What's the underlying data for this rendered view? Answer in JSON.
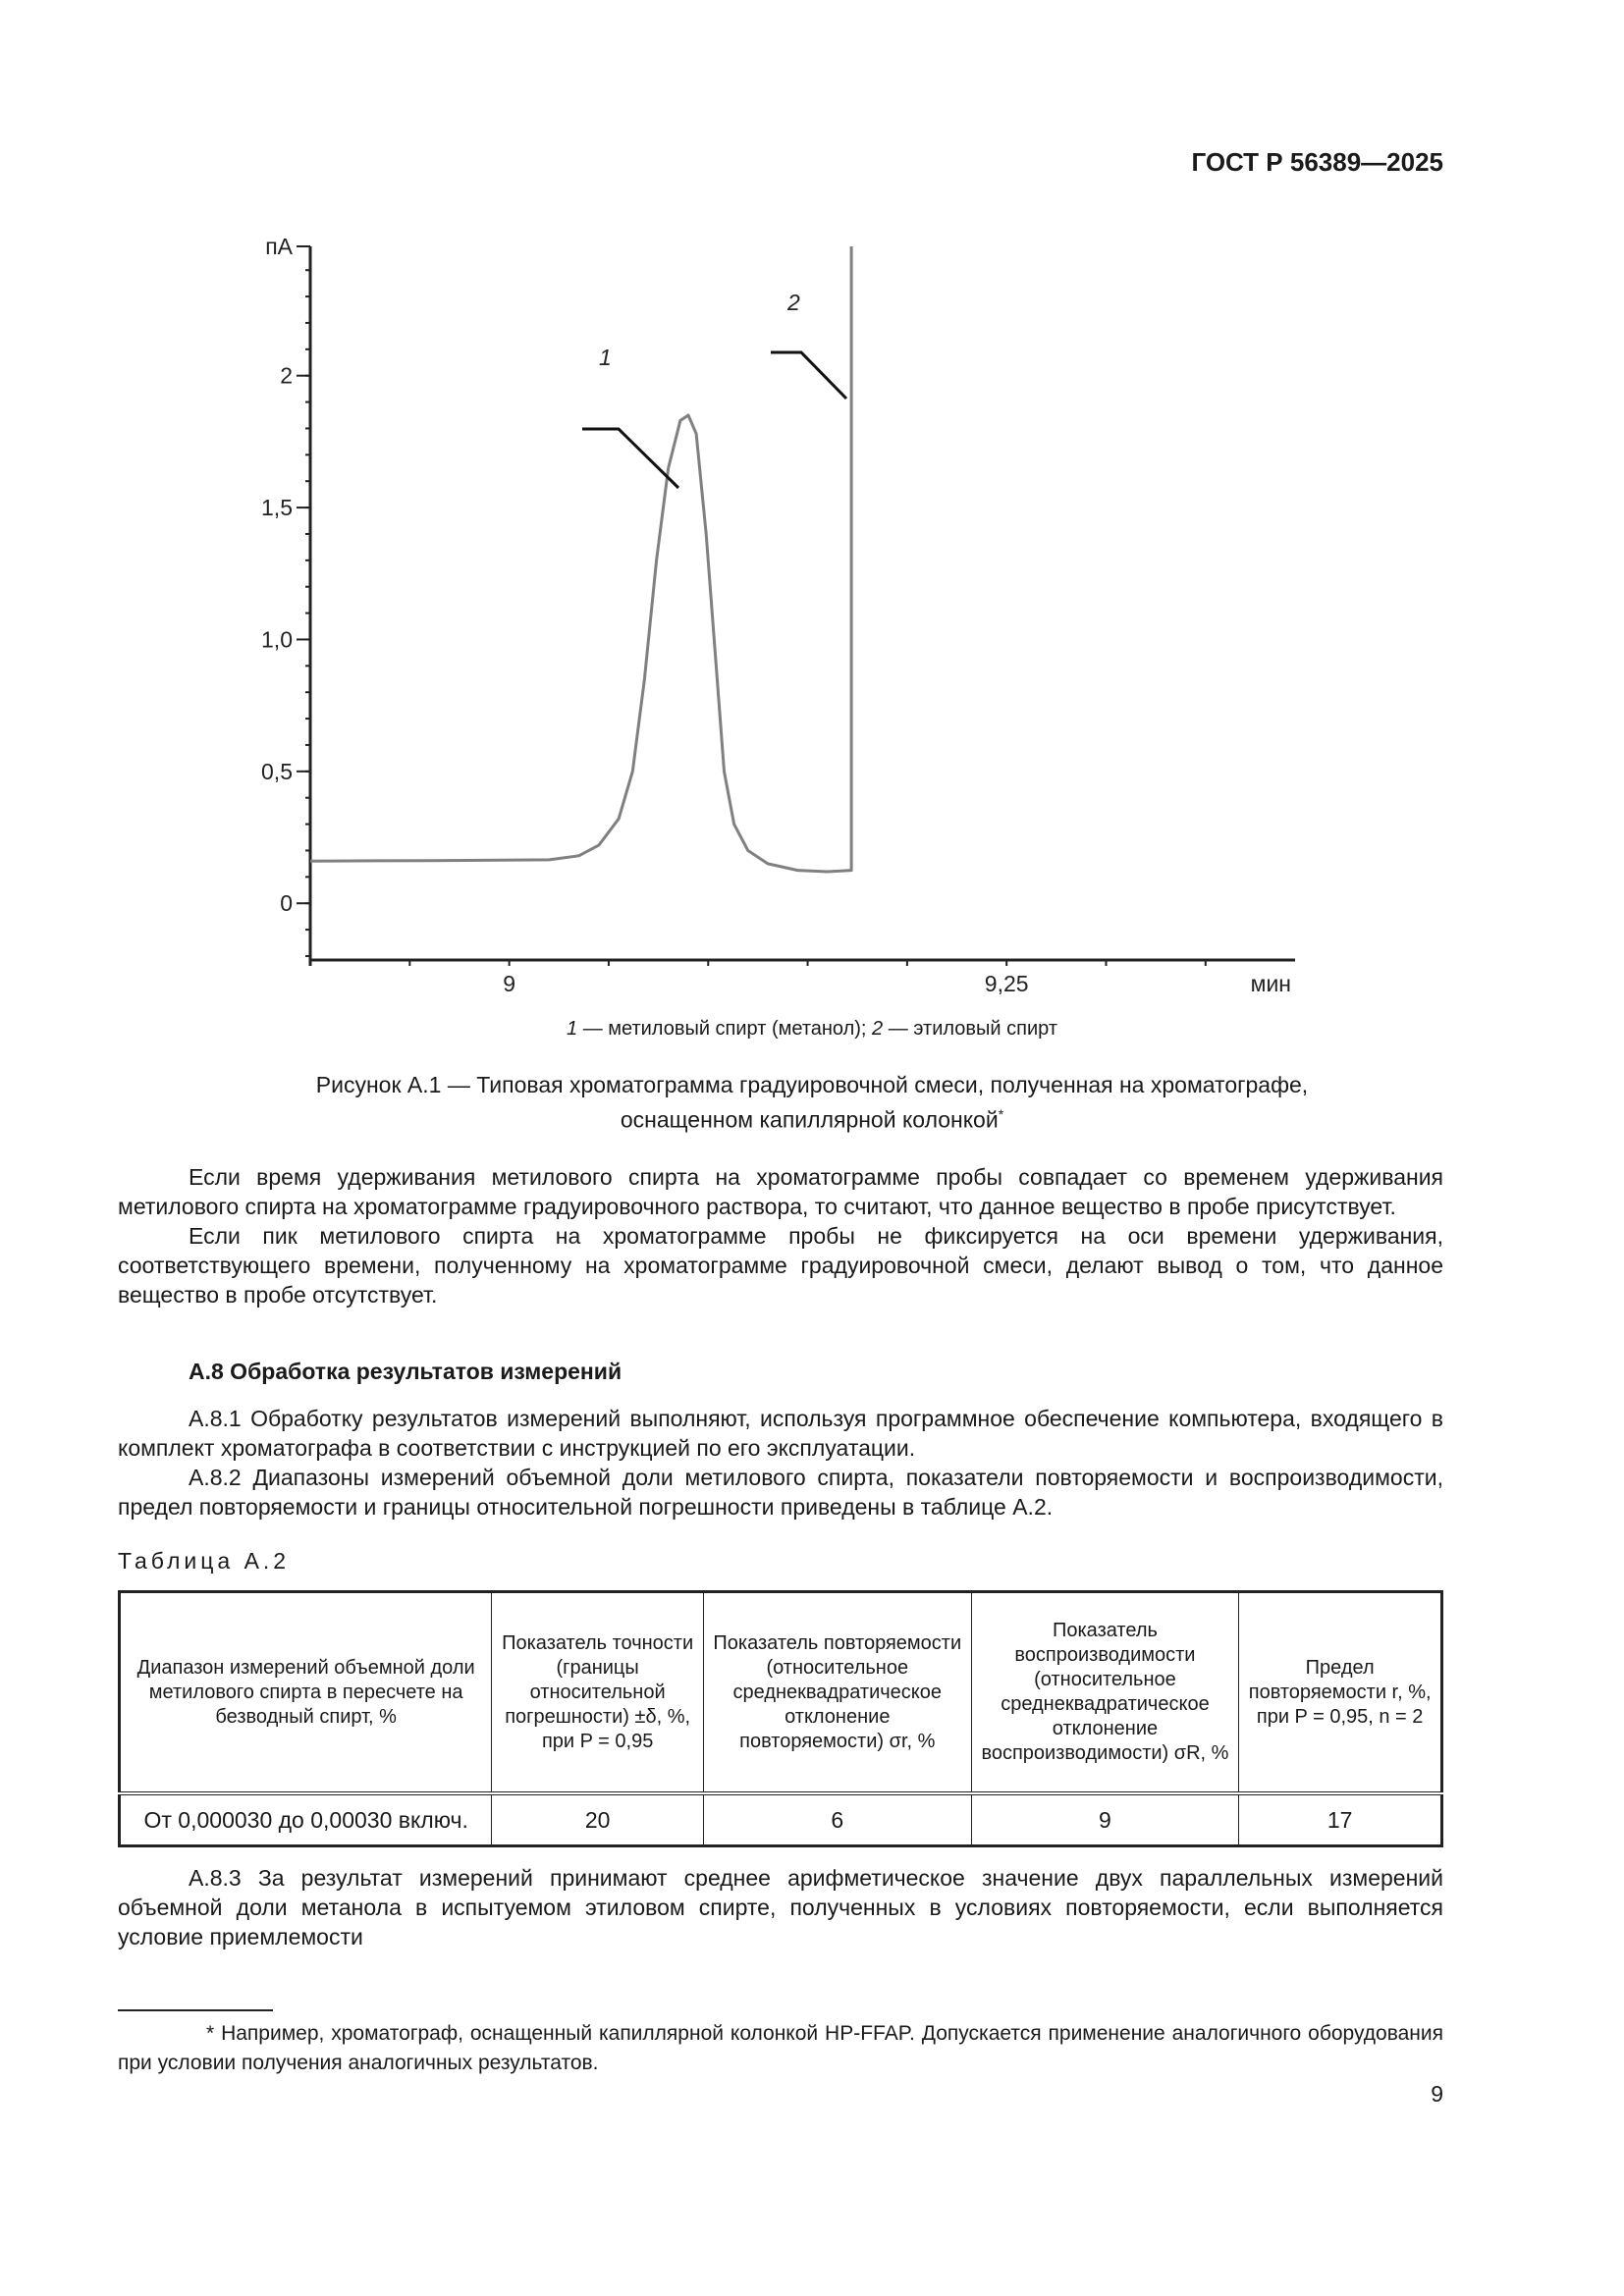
{
  "header": {
    "doc_id": "ГОСТ Р 56389—2025"
  },
  "chart_data": {
    "type": "line",
    "title": "",
    "ylabel": "пА",
    "xlabel": "мин",
    "xlim": [
      8.9,
      9.395
    ],
    "ylim": [
      -0.215,
      2.49
    ],
    "x_tick_labels": [
      {
        "value": 9,
        "label": "9"
      },
      {
        "value": 9.25,
        "label": "9,25"
      }
    ],
    "x_minor_step": 0.05,
    "y_tick_labels": [
      {
        "value": 0,
        "label": "0"
      },
      {
        "value": 0.5,
        "label": "0,5"
      },
      {
        "value": 1.0,
        "label": "1,0"
      },
      {
        "value": 1.5,
        "label": "1,5"
      },
      {
        "value": 2,
        "label": "2"
      }
    ],
    "y_minor_step": 0.1,
    "grid": false,
    "line_color": "#808080",
    "series": [
      {
        "x": [
          8.9,
          8.96,
          9.02,
          9.035,
          9.045,
          9.055,
          9.062,
          9.068,
          9.074,
          9.08,
          9.086,
          9.09,
          9.094,
          9.099,
          9.104,
          9.108,
          9.113,
          9.12,
          9.13,
          9.145,
          9.16,
          9.172,
          9.172
        ],
        "y": [
          0.16,
          0.162,
          0.165,
          0.18,
          0.22,
          0.32,
          0.5,
          0.85,
          1.3,
          1.65,
          1.83,
          1.85,
          1.78,
          1.4,
          0.9,
          0.5,
          0.3,
          0.2,
          0.15,
          0.125,
          0.12,
          0.125,
          2.49
        ]
      }
    ],
    "annotations": [
      {
        "label": "1",
        "x": 9.09,
        "y": 1.85
      },
      {
        "label": "2",
        "x": 9.172,
        "y": 2.08
      }
    ]
  },
  "figure": {
    "legend_parts": [
      "1",
      " — метиловый спирт (метанол); ",
      "2",
      " — этиловый спирт"
    ],
    "title_line1": "Рисунок А.1 — Типовая хроматограмма градуировочной смеси, полученная на хроматографе,",
    "title_line2": "оснащенном капиллярной колонкой",
    "title_mark": "*"
  },
  "text": {
    "p1": "Если время удерживания метилового спирта на хроматограмме пробы совпадает со временем удерживания метилового спирта на хроматограмме градуировочного раствора, то считают, что данное вещество в пробе присутствует.",
    "p2": "Если пик метилового спирта на хроматограмме пробы не фиксируется на оси времени удерживания, соответствующего времени, полученному на хроматограмме градуировочной смеси, делают вывод о том, что данное вещество в пробе отсутствует.",
    "section": "А.8 Обработка результатов измерений",
    "p3": "А.8.1 Обработку результатов измерений выполняют, используя программное обеспечение компьютера, входящего в комплект хроматографа в соответствии с инструкцией по его эксплуатации.",
    "p4": "А.8.2 Диапазоны измерений объемной доли метилового спирта, показатели повторяемости и воспроизводимости, предел повторяемости и границы относительной погрешности приведены в таблице А.2.",
    "p5": "А.8.3 За результат измерений принимают среднее арифметическое значение двух параллельных измерений объемной доли метанола в испытуемом этиловом спирте, полученных в условиях повторяемости, если выполняется условие приемлемости"
  },
  "table": {
    "label": "Таблица А.2",
    "headers": [
      "Диапазон измерений объемной доли метилового спирта в пересчете на безводный спирт, %",
      "Показатель точности (границы относительной погрешности) ±δ, %, при P = 0,95",
      "Показатель повторяемости (относительное среднеквадратическое отклонение повторяемости) σr, %",
      "Показатель воспроизводимости (относительное среднеквадратическое отклонение воспроизводимости) σR, %",
      "Предел повторяемости r, %, при P = 0,95, n = 2"
    ],
    "rows": [
      [
        "От 0,000030 до 0,00030 включ.",
        "20",
        "6",
        "9",
        "17"
      ]
    ]
  },
  "footnote": "* Например, хроматограф, оснащенный капиллярной колонкой HP-FFAP. Допускается применение аналогичного оборудования при условии получения аналогичных результатов.",
  "page_number": "9"
}
